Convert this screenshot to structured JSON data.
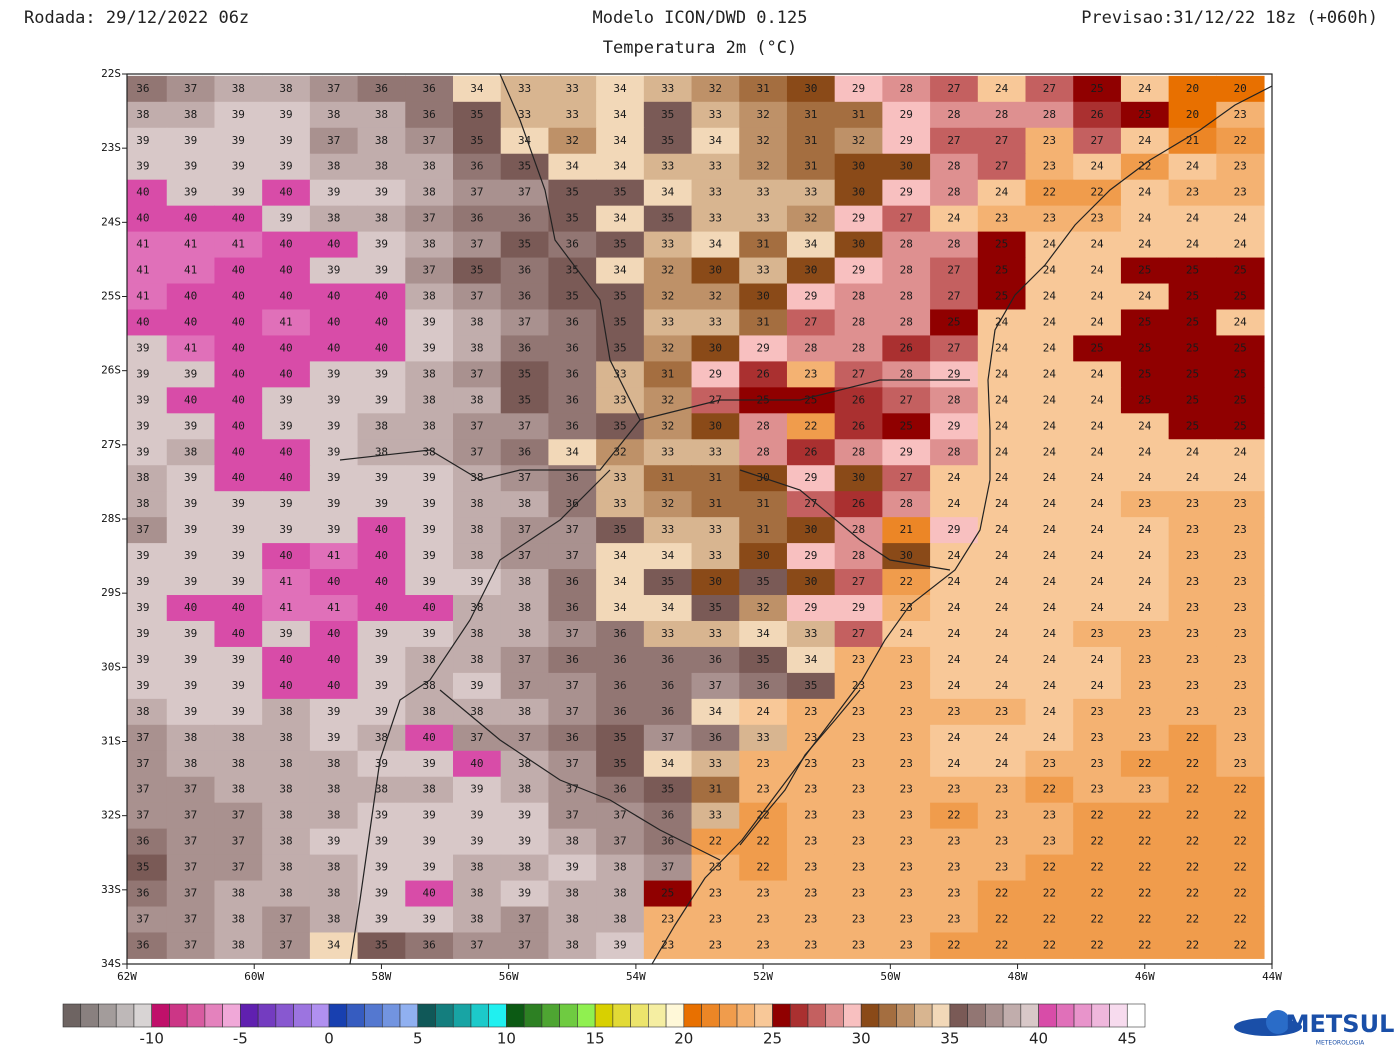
{
  "header": {
    "run": "Rodada: 29/12/2022 06z",
    "model": "Modelo ICON/DWD 0.125",
    "variable": "Temperatura 2m (°C)",
    "forecast": "Previsao:31/12/22 18z (+060h)"
  },
  "map": {
    "xlim": [
      -62,
      -44
    ],
    "ylim": [
      -34,
      -22
    ],
    "xticks": [
      {
        "value": -62,
        "label": "62W"
      },
      {
        "value": -60,
        "label": "60W"
      },
      {
        "value": -58,
        "label": "58W"
      },
      {
        "value": -56,
        "label": "56W"
      },
      {
        "value": -54,
        "label": "54W"
      },
      {
        "value": -52,
        "label": "52W"
      },
      {
        "value": -50,
        "label": "50W"
      },
      {
        "value": -48,
        "label": "48W"
      },
      {
        "value": -46,
        "label": "46W"
      },
      {
        "value": -44,
        "label": "44W"
      }
    ],
    "yticks": [
      {
        "value": -22,
        "label": "22S"
      },
      {
        "value": -23,
        "label": "23S"
      },
      {
        "value": -24,
        "label": "24S"
      },
      {
        "value": -25,
        "label": "25S"
      },
      {
        "value": -26,
        "label": "26S"
      },
      {
        "value": -27,
        "label": "27S"
      },
      {
        "value": -28,
        "label": "28S"
      },
      {
        "value": -29,
        "label": "29S"
      },
      {
        "value": -30,
        "label": "30S"
      },
      {
        "value": -31,
        "label": "31S"
      },
      {
        "value": -32,
        "label": "32S"
      },
      {
        "value": -33,
        "label": "33S"
      },
      {
        "value": -34,
        "label": "34S"
      }
    ],
    "lon": [
      -61.75,
      -61,
      -60.25,
      -59.5,
      -58.75,
      -58,
      -57.25,
      -56.5,
      -55.75,
      -55,
      -54.25,
      -53.5,
      -52.75,
      -52,
      -51.25,
      -50.5,
      -49.75,
      -49,
      -48.25,
      -47.5,
      -46.75,
      -46,
      -45.25,
      -44.5
    ],
    "lat": [
      -22.2,
      -22.55,
      -22.9,
      -23.25,
      -23.6,
      -23.95,
      -24.3,
      -24.65,
      -25,
      -25.35,
      -25.7,
      -26.05,
      -26.4,
      -26.75,
      -27.1,
      -27.45,
      -27.8,
      -28.15,
      -28.5,
      -28.85,
      -29.2,
      -29.55,
      -29.9,
      -30.25,
      -30.6,
      -30.95,
      -31.3,
      -31.65,
      -32,
      -32.35,
      -32.7,
      -33.05,
      -33.4,
      -33.75
    ],
    "values": [
      [
        36,
        37,
        38,
        38,
        37,
        36,
        36,
        34,
        33,
        33,
        34,
        33,
        32,
        31,
        30,
        29,
        28,
        27,
        24,
        27,
        25,
        24,
        20,
        20
      ],
      [
        38,
        38,
        39,
        39,
        38,
        38,
        36,
        35,
        33,
        33,
        34,
        35,
        33,
        32,
        31,
        31,
        29,
        28,
        28,
        28,
        26,
        25,
        20,
        23
      ],
      [
        39,
        39,
        39,
        39,
        37,
        38,
        37,
        35,
        34,
        32,
        34,
        35,
        34,
        32,
        31,
        32,
        29,
        27,
        27,
        23,
        27,
        24,
        21,
        22
      ],
      [
        39,
        39,
        39,
        39,
        38,
        38,
        38,
        36,
        35,
        34,
        34,
        33,
        33,
        32,
        31,
        30,
        30,
        28,
        27,
        23,
        24,
        22,
        24,
        23
      ],
      [
        40,
        39,
        39,
        40,
        39,
        39,
        38,
        37,
        37,
        35,
        35,
        34,
        33,
        33,
        33,
        30,
        29,
        28,
        24,
        22,
        22,
        24,
        23,
        23
      ],
      [
        40,
        40,
        40,
        39,
        38,
        38,
        37,
        36,
        36,
        35,
        34,
        35,
        33,
        33,
        32,
        29,
        27,
        24,
        23,
        23,
        23,
        24,
        24,
        24
      ],
      [
        41,
        41,
        41,
        40,
        40,
        39,
        38,
        37,
        35,
        36,
        35,
        33,
        34,
        31,
        34,
        30,
        28,
        28,
        25,
        24,
        24,
        24,
        24,
        24
      ],
      [
        41,
        41,
        40,
        40,
        39,
        39,
        37,
        35,
        36,
        35,
        34,
        32,
        30,
        33,
        30,
        29,
        28,
        27,
        25,
        24,
        24,
        25,
        25,
        25
      ],
      [
        41,
        40,
        40,
        40,
        40,
        40,
        38,
        37,
        36,
        35,
        35,
        32,
        32,
        30,
        29,
        28,
        28,
        27,
        25,
        24,
        24,
        24,
        25,
        25
      ],
      [
        40,
        40,
        40,
        41,
        40,
        40,
        39,
        38,
        37,
        36,
        35,
        33,
        33,
        31,
        27,
        28,
        28,
        25,
        24,
        24,
        24,
        25,
        25,
        24
      ],
      [
        39,
        41,
        40,
        40,
        40,
        40,
        39,
        38,
        36,
        36,
        35,
        32,
        30,
        29,
        28,
        28,
        26,
        27,
        24,
        24,
        25,
        25,
        25,
        25
      ],
      [
        39,
        39,
        40,
        40,
        39,
        39,
        38,
        37,
        35,
        36,
        33,
        31,
        29,
        26,
        23,
        27,
        28,
        29,
        24,
        24,
        24,
        25,
        25,
        25
      ],
      [
        39,
        40,
        40,
        39,
        39,
        39,
        38,
        38,
        35,
        36,
        33,
        32,
        27,
        25,
        25,
        26,
        27,
        28,
        24,
        24,
        24,
        25,
        25,
        25
      ],
      [
        39,
        39,
        40,
        39,
        39,
        38,
        38,
        37,
        37,
        36,
        35,
        32,
        30,
        28,
        22,
        26,
        25,
        29,
        24,
        24,
        24,
        24,
        25,
        25
      ],
      [
        39,
        38,
        40,
        40,
        39,
        38,
        38,
        37,
        36,
        34,
        32,
        33,
        33,
        28,
        26,
        28,
        29,
        28,
        24,
        24,
        24,
        24,
        24,
        24
      ],
      [
        38,
        39,
        40,
        40,
        39,
        39,
        39,
        38,
        37,
        36,
        33,
        31,
        31,
        30,
        29,
        30,
        27,
        24,
        24,
        24,
        24,
        24,
        24,
        24
      ],
      [
        38,
        39,
        39,
        39,
        39,
        39,
        39,
        38,
        38,
        36,
        33,
        32,
        31,
        31,
        27,
        26,
        28,
        24,
        24,
        24,
        24,
        23,
        23,
        23
      ],
      [
        37,
        39,
        39,
        39,
        39,
        40,
        39,
        38,
        37,
        37,
        35,
        33,
        33,
        31,
        30,
        28,
        21,
        29,
        24,
        24,
        24,
        24,
        23,
        23
      ],
      [
        39,
        39,
        39,
        40,
        41,
        40,
        39,
        38,
        37,
        37,
        34,
        34,
        33,
        30,
        29,
        28,
        30,
        24,
        24,
        24,
        24,
        24,
        23,
        23
      ],
      [
        39,
        39,
        39,
        41,
        40,
        40,
        39,
        39,
        38,
        36,
        34,
        35,
        30,
        35,
        30,
        27,
        22,
        24,
        24,
        24,
        24,
        24,
        23,
        23
      ],
      [
        39,
        40,
        40,
        41,
        41,
        40,
        40,
        38,
        38,
        36,
        34,
        34,
        35,
        32,
        29,
        29,
        23,
        24,
        24,
        24,
        24,
        24,
        23,
        23
      ],
      [
        39,
        39,
        40,
        39,
        40,
        39,
        39,
        38,
        38,
        37,
        36,
        33,
        33,
        34,
        33,
        27,
        24,
        24,
        24,
        24,
        23,
        23,
        23,
        23
      ],
      [
        39,
        39,
        39,
        40,
        40,
        39,
        38,
        38,
        37,
        36,
        36,
        36,
        36,
        35,
        34,
        23,
        23,
        24,
        24,
        24,
        24,
        23,
        23,
        23
      ],
      [
        39,
        39,
        39,
        40,
        40,
        39,
        38,
        39,
        37,
        37,
        36,
        36,
        37,
        36,
        35,
        23,
        23,
        24,
        24,
        24,
        24,
        23,
        23,
        23
      ],
      [
        38,
        39,
        39,
        38,
        39,
        39,
        38,
        38,
        38,
        37,
        36,
        36,
        34,
        24,
        23,
        23,
        23,
        23,
        23,
        24,
        23,
        23,
        23,
        23
      ],
      [
        37,
        38,
        38,
        38,
        39,
        38,
        40,
        37,
        37,
        36,
        35,
        37,
        36,
        33,
        23,
        23,
        23,
        24,
        24,
        24,
        23,
        23,
        22,
        23
      ],
      [
        37,
        38,
        38,
        38,
        38,
        39,
        39,
        40,
        38,
        37,
        35,
        34,
        33,
        23,
        23,
        23,
        23,
        24,
        24,
        23,
        23,
        22,
        22,
        23
      ],
      [
        37,
        37,
        38,
        38,
        38,
        38,
        38,
        39,
        38,
        37,
        36,
        35,
        31,
        23,
        23,
        23,
        23,
        23,
        23,
        22,
        23,
        23,
        22,
        22
      ],
      [
        37,
        37,
        37,
        38,
        38,
        39,
        39,
        39,
        39,
        37,
        37,
        36,
        33,
        22,
        23,
        23,
        23,
        22,
        23,
        23,
        22,
        22,
        22,
        22
      ],
      [
        36,
        37,
        37,
        38,
        39,
        39,
        39,
        39,
        39,
        38,
        37,
        36,
        22,
        22,
        23,
        23,
        23,
        23,
        23,
        23,
        22,
        22,
        22,
        22
      ],
      [
        35,
        37,
        37,
        38,
        38,
        39,
        39,
        38,
        38,
        39,
        38,
        37,
        23,
        22,
        23,
        23,
        23,
        23,
        23,
        22,
        22,
        22,
        22,
        22
      ],
      [
        36,
        37,
        38,
        38,
        38,
        39,
        40,
        38,
        39,
        38,
        38,
        25,
        23,
        23,
        23,
        23,
        23,
        23,
        22,
        22,
        22,
        22,
        22,
        22
      ],
      [
        37,
        37,
        38,
        37,
        38,
        39,
        39,
        38,
        37,
        38,
        38,
        23,
        23,
        23,
        23,
        23,
        23,
        23,
        22,
        22,
        22,
        22,
        22,
        22
      ],
      [
        36,
        37,
        38,
        37,
        34,
        35,
        36,
        37,
        37,
        38,
        39,
        23,
        23,
        23,
        23,
        23,
        23,
        22,
        22,
        22,
        22,
        22,
        22,
        22
      ]
    ]
  },
  "colorbar": {
    "lim": [
      -15,
      46
    ],
    "ticks": [
      -10,
      -5,
      0,
      5,
      10,
      15,
      20,
      25,
      30,
      35,
      40,
      45
    ],
    "stops": [
      {
        "value": -15,
        "color": "#6e6462"
      },
      {
        "value": -11,
        "color": "#d8d4d4"
      },
      {
        "value": -10,
        "color": "#c0106a"
      },
      {
        "value": -6,
        "color": "#f0a8d8"
      },
      {
        "value": -5,
        "color": "#6020b0"
      },
      {
        "value": -1,
        "color": "#b090f0"
      },
      {
        "value": 0,
        "color": "#1840b0"
      },
      {
        "value": 4,
        "color": "#90b0f0"
      },
      {
        "value": 5,
        "color": "#105858"
      },
      {
        "value": 9,
        "color": "#20f0f0"
      },
      {
        "value": 10,
        "color": "#0c5a14"
      },
      {
        "value": 14,
        "color": "#90f050"
      },
      {
        "value": 15,
        "color": "#d8d000"
      },
      {
        "value": 19,
        "color": "#fff8d8"
      },
      {
        "value": 20,
        "color": "#e87000"
      },
      {
        "value": 24,
        "color": "#f8c898"
      },
      {
        "value": 25,
        "color": "#900000"
      },
      {
        "value": 29,
        "color": "#f8c0c0"
      },
      {
        "value": 30,
        "color": "#8a4a18"
      },
      {
        "value": 34,
        "color": "#f2d8b8"
      },
      {
        "value": 35,
        "color": "#7a5a56"
      },
      {
        "value": 39,
        "color": "#d8c8c8"
      },
      {
        "value": 40,
        "color": "#d84ca8"
      },
      {
        "value": 45,
        "color": "#ffffff"
      }
    ]
  },
  "logo": {
    "name": "METSUL",
    "tagline": "METEOROLOGIA"
  }
}
